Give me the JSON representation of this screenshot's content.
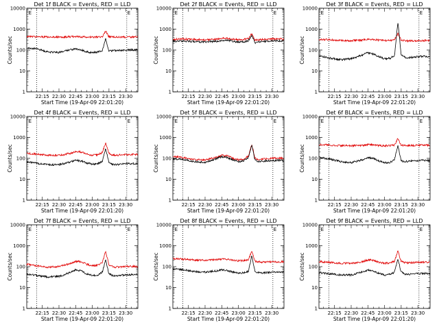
{
  "figure": {
    "panel_titles": [
      "Det 1f BLACK = Events, RED = LLD",
      "Det 2f BLACK = Events, RED = LLD",
      "Det 3f BLACK = Events, RED = LLD",
      "Det 4f BLACK = Events, RED = LLD",
      "Det 5f BLACK = Events, RED = LLD",
      "Det 6f BLACK = Events, RED = LLD",
      "Det 7f BLACK = Events, RED = LLD",
      "Det 8f BLACK = Events, RED = LLD",
      "Det 9f BLACK = Events, RED = LLD"
    ],
    "ylabel": "Counts/sec",
    "xlabel": "Start Time (19-Apr-09 22:01:20)",
    "x_tick_labels": [
      "22:15",
      "22:30",
      "22:45",
      "23:00",
      "23:15",
      "23:30"
    ],
    "y_tick_labels": [
      "1",
      "10",
      "100",
      "1000",
      "10000"
    ],
    "marker_labels": [
      "E",
      "E"
    ],
    "colors": {
      "events": "#000000",
      "lld": "#e00000"
    }
  },
  "chart_data": [
    {
      "type": "line",
      "title": "Det 1f BLACK = Events, RED = LLD",
      "xlabel": "Start Time (19-Apr-09 22:01:20)",
      "ylabel": "Counts/sec",
      "x_unit": "HH:MM",
      "xlim": [
        "22:01",
        "23:41"
      ],
      "ylim": [
        1,
        10000
      ],
      "yscale": "log",
      "x_ticks": [
        "22:15",
        "22:30",
        "22:45",
        "23:00",
        "23:15",
        "23:30"
      ],
      "y_ticks": [
        1,
        10,
        100,
        1000,
        10000
      ],
      "vlines": [
        "22:10",
        "23:31"
      ],
      "annotations": [
        {
          "text": "E",
          "x": "22:02"
        },
        {
          "text": "E",
          "x": "23:31"
        }
      ],
      "x": [
        "22:01",
        "22:10",
        "22:20",
        "22:30",
        "22:40",
        "22:45",
        "22:50",
        "22:55",
        "23:00",
        "23:05",
        "23:09",
        "23:12",
        "23:15",
        "23:18",
        "23:21",
        "23:25",
        "23:30",
        "23:35",
        "23:41"
      ],
      "series": [
        {
          "name": "BLACK = Events",
          "values": [
            125,
            115,
            80,
            78,
            102,
            115,
            100,
            82,
            75,
            80,
            95,
            350,
            90,
            92,
            95,
            98,
            100,
            102,
            100
          ]
        },
        {
          "name": "RED = LLD",
          "values": [
            430,
            430,
            420,
            420,
            430,
            440,
            430,
            420,
            420,
            420,
            430,
            820,
            420,
            420,
            420,
            420,
            420,
            425,
            420
          ]
        }
      ]
    },
    {
      "type": "line",
      "title": "Det 2f BLACK = Events, RED = LLD",
      "xlabel": "Start Time (19-Apr-09 22:01:20)",
      "ylabel": "Counts/sec",
      "x_unit": "HH:MM",
      "xlim": [
        "22:01",
        "23:41"
      ],
      "ylim": [
        1,
        10000
      ],
      "yscale": "log",
      "x_ticks": [
        "22:15",
        "22:30",
        "22:45",
        "23:00",
        "23:15",
        "23:30"
      ],
      "y_ticks": [
        1,
        10,
        100,
        1000,
        10000
      ],
      "vlines": [
        "22:10",
        "23:31"
      ],
      "annotations": [
        {
          "text": "E",
          "x": "22:02"
        },
        {
          "text": "E",
          "x": "23:31"
        }
      ],
      "x": [
        "22:01",
        "22:10",
        "22:20",
        "22:30",
        "22:40",
        "22:45",
        "22:50",
        "22:55",
        "23:00",
        "23:05",
        "23:09",
        "23:12",
        "23:15",
        "23:18",
        "23:21",
        "23:25",
        "23:30",
        "23:35",
        "23:41"
      ],
      "series": [
        {
          "name": "BLACK = Events",
          "values": [
            260,
            270,
            250,
            240,
            260,
            290,
            300,
            260,
            240,
            250,
            280,
            480,
            220,
            240,
            250,
            260,
            270,
            275,
            270
          ]
        },
        {
          "name": "RED = LLD",
          "values": [
            330,
            340,
            320,
            310,
            330,
            360,
            370,
            330,
            310,
            320,
            350,
            600,
            290,
            310,
            320,
            330,
            340,
            345,
            340
          ]
        }
      ]
    },
    {
      "type": "line",
      "title": "Det 3f BLACK = Events, RED = LLD",
      "xlabel": "Start Time (19-Apr-09 22:01:20)",
      "ylabel": "Counts/sec",
      "x_unit": "HH:MM",
      "xlim": [
        "22:01",
        "23:41"
      ],
      "ylim": [
        1,
        10000
      ],
      "yscale": "log",
      "x_ticks": [
        "22:15",
        "22:30",
        "22:45",
        "23:00",
        "23:15",
        "23:30"
      ],
      "y_ticks": [
        1,
        10,
        100,
        1000,
        10000
      ],
      "vlines": [
        "22:10",
        "23:31"
      ],
      "annotations": [
        {
          "text": "E",
          "x": "22:02"
        },
        {
          "text": "E",
          "x": "23:31"
        }
      ],
      "x": [
        "22:01",
        "22:10",
        "22:20",
        "22:30",
        "22:40",
        "22:45",
        "22:50",
        "22:55",
        "23:00",
        "23:05",
        "23:09",
        "23:12",
        "23:15",
        "23:18",
        "23:21",
        "23:25",
        "23:30",
        "23:35",
        "23:41"
      ],
      "series": [
        {
          "name": "BLACK = Events",
          "values": [
            52,
            42,
            35,
            38,
            58,
            75,
            65,
            48,
            38,
            40,
            55,
            2200,
            58,
            45,
            42,
            45,
            48,
            50,
            48
          ]
        },
        {
          "name": "RED = LLD",
          "values": [
            330,
            310,
            290,
            280,
            300,
            330,
            320,
            300,
            280,
            290,
            310,
            620,
            290,
            280,
            270,
            275,
            280,
            285,
            280
          ]
        }
      ]
    },
    {
      "type": "line",
      "title": "Det 4f BLACK = Events, RED = LLD",
      "xlabel": "Start Time (19-Apr-09 22:01:20)",
      "ylabel": "Counts/sec",
      "x_unit": "HH:MM",
      "xlim": [
        "22:01",
        "23:41"
      ],
      "ylim": [
        1,
        10000
      ],
      "yscale": "log",
      "x_ticks": [
        "22:15",
        "22:30",
        "22:45",
        "23:00",
        "23:15",
        "23:30"
      ],
      "y_ticks": [
        1,
        10,
        100,
        1000,
        10000
      ],
      "vlines": [
        "22:10",
        "23:31"
      ],
      "annotations": [
        {
          "text": "E",
          "x": "22:02"
        },
        {
          "text": "E",
          "x": "23:31"
        }
      ],
      "x": [
        "22:01",
        "22:10",
        "22:20",
        "22:30",
        "22:40",
        "22:45",
        "22:50",
        "22:55",
        "23:00",
        "23:05",
        "23:09",
        "23:12",
        "23:15",
        "23:18",
        "23:21",
        "23:25",
        "23:30",
        "23:35",
        "23:41"
      ],
      "series": [
        {
          "name": "BLACK = Events",
          "values": [
            68,
            58,
            50,
            50,
            65,
            80,
            75,
            60,
            52,
            55,
            70,
            300,
            62,
            52,
            50,
            52,
            55,
            56,
            55
          ]
        },
        {
          "name": "RED = LLD",
          "values": [
            175,
            160,
            140,
            140,
            170,
            210,
            200,
            160,
            140,
            150,
            190,
            550,
            170,
            145,
            140,
            145,
            150,
            152,
            150
          ]
        }
      ]
    },
    {
      "type": "line",
      "title": "Det 5f BLACK = Events, RED = LLD",
      "xlabel": "Start Time (19-Apr-09 22:01:20)",
      "ylabel": "Counts/sec",
      "x_unit": "HH:MM",
      "xlim": [
        "22:01",
        "23:41"
      ],
      "ylim": [
        1,
        10000
      ],
      "yscale": "log",
      "x_ticks": [
        "22:15",
        "22:30",
        "22:45",
        "23:00",
        "23:15",
        "23:30"
      ],
      "y_ticks": [
        1,
        10,
        100,
        1000,
        10000
      ],
      "vlines": [
        "22:10",
        "23:31"
      ],
      "annotations": [
        {
          "text": "E",
          "x": "22:02"
        },
        {
          "text": "E",
          "x": "23:31"
        }
      ],
      "x": [
        "22:01",
        "22:10",
        "22:20",
        "22:30",
        "22:40",
        "22:45",
        "22:50",
        "22:55",
        "23:00",
        "23:05",
        "23:09",
        "23:12",
        "23:15",
        "23:18",
        "23:21",
        "23:25",
        "23:30",
        "23:35",
        "23:41"
      ],
      "series": [
        {
          "name": "BLACK = Events",
          "values": [
            95,
            90,
            70,
            65,
            95,
            120,
            110,
            85,
            70,
            75,
            110,
            420,
            80,
            70,
            72,
            75,
            78,
            80,
            78
          ]
        },
        {
          "name": "RED = LLD",
          "values": [
            120,
            110,
            90,
            85,
            110,
            140,
            130,
            100,
            85,
            90,
            130,
            460,
            100,
            90,
            90,
            95,
            100,
            102,
            100
          ]
        }
      ]
    },
    {
      "type": "line",
      "title": "Det 6f BLACK = Events, RED = LLD",
      "xlabel": "Start Time (19-Apr-09 22:01:20)",
      "ylabel": "Counts/sec",
      "x_unit": "HH:MM",
      "xlim": [
        "22:01",
        "23:41"
      ],
      "ylim": [
        1,
        10000
      ],
      "yscale": "log",
      "x_ticks": [
        "22:15",
        "22:30",
        "22:45",
        "23:00",
        "23:15",
        "23:30"
      ],
      "y_ticks": [
        1,
        10,
        100,
        1000,
        10000
      ],
      "vlines": [
        "22:10",
        "23:31"
      ],
      "annotations": [
        {
          "text": "E",
          "x": "22:02"
        },
        {
          "text": "E",
          "x": "23:31"
        }
      ],
      "x": [
        "22:01",
        "22:10",
        "22:20",
        "22:30",
        "22:40",
        "22:45",
        "22:50",
        "22:55",
        "23:00",
        "23:05",
        "23:09",
        "23:12",
        "23:15",
        "23:18",
        "23:21",
        "23:25",
        "23:30",
        "23:35",
        "23:41"
      ],
      "series": [
        {
          "name": "BLACK = Events",
          "values": [
            110,
            95,
            70,
            62,
            85,
            110,
            100,
            75,
            62,
            65,
            90,
            420,
            75,
            70,
            72,
            75,
            78,
            80,
            78
          ]
        },
        {
          "name": "RED = LLD",
          "values": [
            460,
            440,
            410,
            400,
            420,
            450,
            440,
            410,
            400,
            410,
            430,
            880,
            420,
            410,
            410,
            415,
            420,
            425,
            420
          ]
        }
      ]
    },
    {
      "type": "line",
      "title": "Det 7f BLACK = Events, RED = LLD",
      "xlabel": "Start Time (19-Apr-09 22:01:20)",
      "ylabel": "Counts/sec",
      "x_unit": "HH:MM",
      "xlim": [
        "22:01",
        "23:41"
      ],
      "ylim": [
        1,
        10000
      ],
      "yscale": "log",
      "x_ticks": [
        "22:15",
        "22:30",
        "22:45",
        "23:00",
        "23:15",
        "23:30"
      ],
      "y_ticks": [
        1,
        10,
        100,
        1000,
        10000
      ],
      "vlines": [
        "22:10",
        "23:31"
      ],
      "annotations": [
        {
          "text": "E",
          "x": "22:02"
        },
        {
          "text": "E",
          "x": "23:31"
        }
      ],
      "x": [
        "22:01",
        "22:10",
        "22:20",
        "22:30",
        "22:40",
        "22:45",
        "22:50",
        "22:55",
        "23:00",
        "23:05",
        "23:09",
        "23:12",
        "23:15",
        "23:18",
        "23:21",
        "23:25",
        "23:30",
        "23:35",
        "23:41"
      ],
      "series": [
        {
          "name": "BLACK = Events",
          "values": [
            42,
            38,
            32,
            34,
            52,
            70,
            62,
            45,
            38,
            40,
            55,
            210,
            45,
            38,
            36,
            38,
            40,
            42,
            40
          ]
        },
        {
          "name": "RED = LLD",
          "values": [
            130,
            110,
            95,
            100,
            140,
            180,
            170,
            130,
            110,
            115,
            150,
            560,
            120,
            100,
            95,
            98,
            100,
            105,
            100
          ]
        }
      ]
    },
    {
      "type": "line",
      "title": "Det 8f BLACK = Events, RED = LLD",
      "xlabel": "Start Time (19-Apr-09 22:01:20)",
      "ylabel": "Counts/sec",
      "x_unit": "HH:MM",
      "xlim": [
        "22:01",
        "23:41"
      ],
      "ylim": [
        1,
        10000
      ],
      "yscale": "log",
      "x_ticks": [
        "22:15",
        "22:30",
        "22:45",
        "23:00",
        "23:15",
        "23:30"
      ],
      "y_ticks": [
        1,
        10,
        100,
        1000,
        10000
      ],
      "vlines": [
        "22:10",
        "23:31"
      ],
      "annotations": [
        {
          "text": "E",
          "x": "22:02"
        },
        {
          "text": "E",
          "x": "23:31"
        }
      ],
      "x": [
        "22:01",
        "22:10",
        "22:20",
        "22:30",
        "22:40",
        "22:45",
        "22:50",
        "22:55",
        "23:00",
        "23:05",
        "23:09",
        "23:12",
        "23:15",
        "23:18",
        "23:21",
        "23:25",
        "23:30",
        "23:35",
        "23:41"
      ],
      "series": [
        {
          "name": "BLACK = Events",
          "values": [
            80,
            72,
            58,
            55,
            62,
            70,
            65,
            55,
            50,
            52,
            60,
            330,
            55,
            52,
            50,
            52,
            55,
            56,
            55
          ]
        },
        {
          "name": "RED = LLD",
          "values": [
            240,
            230,
            210,
            200,
            210,
            230,
            220,
            200,
            190,
            195,
            210,
            560,
            180,
            170,
            165,
            168,
            170,
            172,
            170
          ]
        }
      ]
    },
    {
      "type": "line",
      "title": "Det 9f BLACK = Events, RED = LLD",
      "xlabel": "Start Time (19-Apr-09 22:01:20)",
      "ylabel": "Counts/sec",
      "x_unit": "HH:MM",
      "xlim": [
        "22:01",
        "23:41"
      ],
      "ylim": [
        1,
        10000
      ],
      "yscale": "log",
      "x_ticks": [
        "22:15",
        "22:30",
        "22:45",
        "23:00",
        "23:15",
        "23:30"
      ],
      "y_ticks": [
        1,
        10,
        100,
        1000,
        10000
      ],
      "vlines": [
        "22:10",
        "23:31"
      ],
      "annotations": [
        {
          "text": "E",
          "x": "22:02"
        },
        {
          "text": "E",
          "x": "23:31"
        }
      ],
      "x": [
        "22:01",
        "22:10",
        "22:20",
        "22:30",
        "22:40",
        "22:45",
        "22:50",
        "22:55",
        "23:00",
        "23:05",
        "23:09",
        "23:12",
        "23:15",
        "23:18",
        "23:21",
        "23:25",
        "23:30",
        "23:35",
        "23:41"
      ],
      "series": [
        {
          "name": "BLACK = Events",
          "values": [
            52,
            46,
            40,
            40,
            55,
            70,
            62,
            48,
            40,
            42,
            55,
            230,
            55,
            45,
            42,
            44,
            46,
            48,
            46
          ]
        },
        {
          "name": "RED = LLD",
          "values": [
            175,
            160,
            145,
            145,
            170,
            210,
            200,
            160,
            145,
            150,
            180,
            560,
            175,
            155,
            150,
            155,
            160,
            162,
            160
          ]
        }
      ]
    }
  ]
}
